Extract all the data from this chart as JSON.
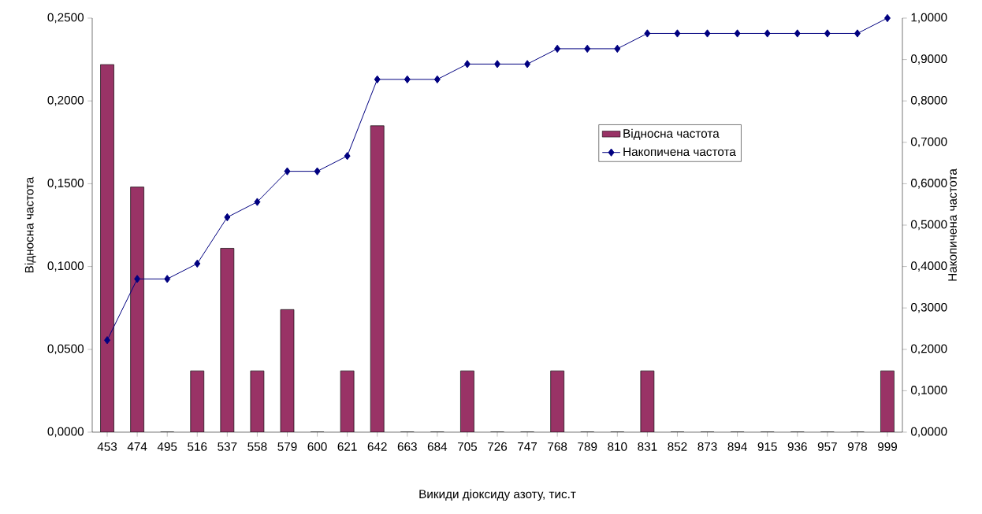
{
  "chart_data": {
    "type": "bar",
    "xlabel": "Викиди діоксиду азоту, тис.т",
    "ylabel": "Відносна частота",
    "y2label": "Накопичена частота",
    "categories": [
      "453",
      "474",
      "495",
      "516",
      "537",
      "558",
      "579",
      "600",
      "621",
      "642",
      "663",
      "684",
      "705",
      "726",
      "747",
      "768",
      "789",
      "810",
      "831",
      "852",
      "873",
      "894",
      "915",
      "936",
      "957",
      "978",
      "999"
    ],
    "series": [
      {
        "name": "Відносна частота",
        "color": "#993366",
        "values": [
          0.222,
          0.148,
          0,
          0.037,
          0.111,
          0.037,
          0.074,
          0,
          0.037,
          0.185,
          0,
          0,
          0.037,
          0,
          0,
          0.037,
          0,
          0,
          0.037,
          0,
          0,
          0,
          0,
          0,
          0,
          0,
          0.037
        ]
      },
      {
        "name": "Накопичена частота",
        "type": "line",
        "axis": "y2",
        "color": "#000080",
        "marker": "diamond",
        "line_style": "solid",
        "values": [
          0.222,
          0.37,
          0.37,
          0.407,
          0.519,
          0.556,
          0.63,
          0.63,
          0.667,
          0.852,
          0.852,
          0.852,
          0.889,
          0.889,
          0.889,
          0.926,
          0.926,
          0.926,
          0.963,
          0.963,
          0.963,
          0.963,
          0.963,
          0.963,
          0.963,
          0.963,
          1.0
        ]
      }
    ],
    "ylim": [
      0,
      0.25
    ],
    "yticks": [
      {
        "value": 0,
        "label": "0,0000"
      },
      {
        "value": 0.05,
        "label": "0,0500"
      },
      {
        "value": 0.1,
        "label": "0,1000"
      },
      {
        "value": 0.15,
        "label": "0,1500"
      },
      {
        "value": 0.2,
        "label": "0,2000"
      },
      {
        "value": 0.25,
        "label": "0,2500"
      }
    ],
    "y2lim": [
      0,
      1
    ],
    "y2ticks": [
      {
        "value": 0,
        "label": "0,0000"
      },
      {
        "value": 0.1,
        "label": "0,1000"
      },
      {
        "value": 0.2,
        "label": "0,2000"
      },
      {
        "value": 0.3,
        "label": "0,3000"
      },
      {
        "value": 0.4,
        "label": "0,4000"
      },
      {
        "value": 0.5,
        "label": "0,5000"
      },
      {
        "value": 0.6,
        "label": "0,6000"
      },
      {
        "value": 0.7,
        "label": "0,7000"
      },
      {
        "value": 0.8,
        "label": "0,8000"
      },
      {
        "value": 0.9,
        "label": "0,9000"
      },
      {
        "value": 1.0,
        "label": "1,0000"
      }
    ],
    "grid": false,
    "legend": "right"
  }
}
